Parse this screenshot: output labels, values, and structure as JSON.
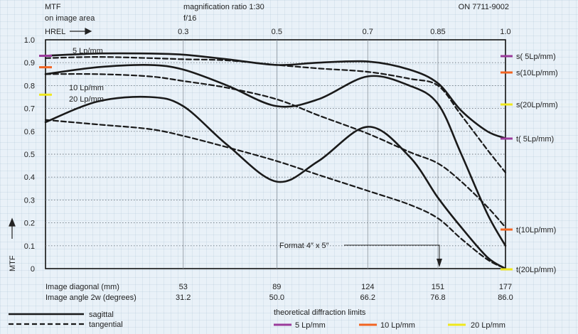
{
  "header": {
    "mtf_title": "MTF",
    "mtf_subtitle": "on image area",
    "hrel_label": "HREL",
    "magnification": "magnification ratio 1:30",
    "aperture": "f/16",
    "model": "ON 7711-9002"
  },
  "axes": {
    "y_label": "MTF",
    "y_ticks": [
      "0",
      "0.1",
      "0.2",
      "0.3",
      "0.4",
      "0.5",
      "0.6",
      "0.7",
      "0.8",
      "0.9",
      "1.0"
    ],
    "hrel_ticks": [
      "0.3",
      "0.5",
      "0.7",
      "0.85",
      "1.0"
    ],
    "diag_label": "Image diagonal (mm)",
    "angle_label": "Image angle 2w (degrees)",
    "diag_ticks": [
      "53",
      "89",
      "124",
      "151",
      "177"
    ],
    "angle_ticks": [
      "31.2",
      "50.0",
      "66.2",
      "76.8",
      "86.0"
    ]
  },
  "annotations": {
    "format": "Format 4″ x 5″",
    "curve_5": "5 Lp/mm",
    "curve_10": "10 Lp/mm",
    "curve_20": "20 Lp/mm"
  },
  "right_labels": [
    "s( 5Lp/mm)",
    "s(10Lp/mm)",
    "s(20Lp/mm)",
    "t( 5Lp/mm)",
    "t(10Lp/mm)",
    "t(20Lp/mm)"
  ],
  "legend": {
    "sagittal": "sagittal",
    "tangential": "tangential",
    "diffraction_title": "theoretical diffraction limits",
    "d5": "5 Lp/mm",
    "d10": "10 Lp/mm",
    "d20": "20 Lp/mm"
  },
  "colors": {
    "c5": "#9b3b9b",
    "c10": "#f26522",
    "c20": "#f0e81c",
    "curve": "#1a1a1a"
  },
  "chart_data": {
    "type": "line",
    "x_ticks": [
      0,
      53,
      89,
      124,
      151,
      177
    ],
    "xlim": [
      0,
      177
    ],
    "ylim": [
      0,
      1.0
    ],
    "x": [
      0,
      20,
      40,
      53,
      70,
      89,
      105,
      124,
      140,
      151,
      160,
      170,
      177
    ],
    "series": [
      {
        "name": "s( 5Lp/mm)",
        "style": "solid",
        "values": [
          0.93,
          0.94,
          0.94,
          0.935,
          0.915,
          0.89,
          0.9,
          0.905,
          0.87,
          0.81,
          0.69,
          0.6,
          0.57
        ]
      },
      {
        "name": "t( 5Lp/mm)",
        "style": "dashed",
        "values": [
          0.92,
          0.925,
          0.92,
          0.915,
          0.91,
          0.89,
          0.875,
          0.86,
          0.83,
          0.8,
          0.67,
          0.52,
          0.42
        ]
      },
      {
        "name": "s(10Lp/mm)",
        "style": "solid",
        "values": [
          0.85,
          0.88,
          0.89,
          0.87,
          0.8,
          0.71,
          0.74,
          0.84,
          0.8,
          0.72,
          0.5,
          0.24,
          0.1
        ]
      },
      {
        "name": "t(10Lp/mm)",
        "style": "dashed",
        "values": [
          0.85,
          0.85,
          0.84,
          0.82,
          0.79,
          0.74,
          0.67,
          0.59,
          0.51,
          0.46,
          0.38,
          0.27,
          0.18
        ]
      },
      {
        "name": "s(20Lp/mm)",
        "style": "solid",
        "values": [
          0.64,
          0.73,
          0.75,
          0.71,
          0.54,
          0.38,
          0.47,
          0.62,
          0.49,
          0.31,
          0.18,
          0.05,
          0.0
        ]
      },
      {
        "name": "t(20Lp/mm)",
        "style": "dashed",
        "values": [
          0.65,
          0.63,
          0.61,
          0.58,
          0.53,
          0.47,
          0.41,
          0.34,
          0.28,
          0.22,
          0.13,
          0.04,
          0.0
        ]
      }
    ],
    "diffraction_limits": [
      {
        "name": "5 Lp/mm",
        "value": 0.93
      },
      {
        "name": "10 Lp/mm",
        "value": 0.88
      },
      {
        "name": "20 Lp/mm",
        "value": 0.76
      }
    ],
    "grid": true,
    "format_marker_x": 151
  }
}
